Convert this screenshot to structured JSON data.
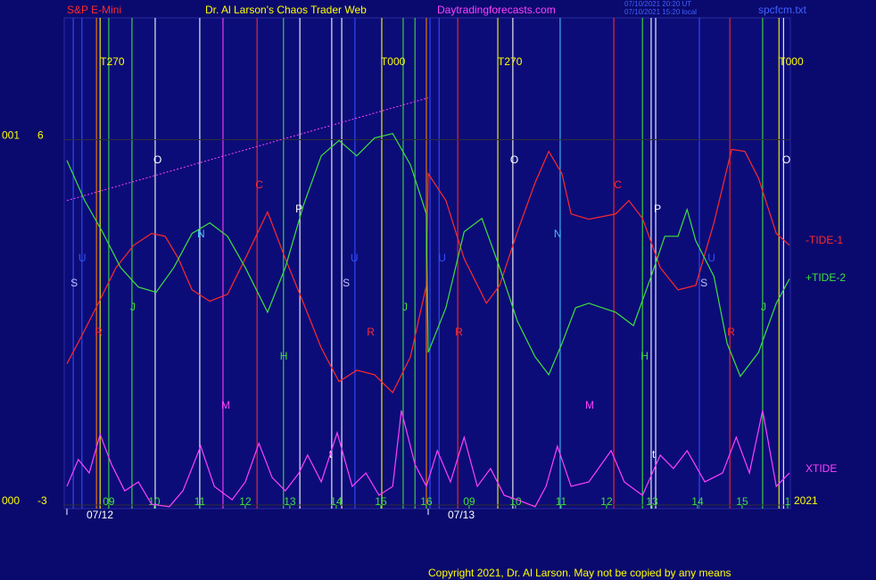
{
  "chart_data": {
    "type": "line",
    "title": "Dr. Al Larson's Chaos Trader Web",
    "instrument": "S&P E-Mini",
    "website": "Daytradingforecasts.com",
    "timestamps": [
      "07/10/2021 20:20 UT",
      "07/10/2021 15:20 local"
    ],
    "file": "spcfcm.txt",
    "year": "2021",
    "copyright": "Copyright 2021, Dr. Al Larson. May not be copied by any means",
    "xlim": [
      0,
      15.88
    ],
    "ylim": [
      -3,
      9
    ],
    "yticks": [
      6,
      -3
    ],
    "ytick_codes": [
      "001",
      "000"
    ],
    "xticks": [
      {
        "value": 0.92,
        "label": "09"
      },
      {
        "value": 1.92,
        "label": "10"
      },
      {
        "value": 2.92,
        "label": "11"
      },
      {
        "value": 3.92,
        "label": "12"
      },
      {
        "value": 4.9,
        "label": "13"
      },
      {
        "value": 5.92,
        "label": "14"
      },
      {
        "value": 6.9,
        "label": "15"
      },
      {
        "value": 7.9,
        "label": "16"
      },
      {
        "value": 8.84,
        "label": "09"
      },
      {
        "value": 9.86,
        "label": "10"
      },
      {
        "value": 10.86,
        "label": "11"
      },
      {
        "value": 11.86,
        "label": "12"
      },
      {
        "value": 12.86,
        "label": "13"
      },
      {
        "value": 13.86,
        "label": "14"
      },
      {
        "value": 14.84,
        "label": "15"
      },
      {
        "value": 15.84,
        "label": "1"
      }
    ],
    "date_ticks": [
      {
        "value": 0,
        "label": "07/12"
      },
      {
        "value": 7.94,
        "label": "07/13"
      }
    ],
    "series": [
      {
        "name": "-TIDE-1",
        "color": "#ff2a2a",
        "x": [
          0,
          0.29,
          0.69,
          1.08,
          1.47,
          1.86,
          2.16,
          2.45,
          2.75,
          3.14,
          3.53,
          3.92,
          4.41,
          4.8,
          5.2,
          5.59,
          5.98,
          6.37,
          6.76,
          7.16,
          7.55,
          7.9,
          7.94,
          8.33,
          8.73,
          9.22,
          9.51,
          9.9,
          10.29,
          10.59,
          10.88,
          11.08,
          11.47,
          12.06,
          12.35,
          12.65,
          13.04,
          13.43,
          13.82,
          14.22,
          14.61,
          14.9,
          15.2,
          15.59,
          15.88
        ],
        "values": [
          0.48,
          1.09,
          1.97,
          2.85,
          3.4,
          3.69,
          3.62,
          3.07,
          2.3,
          2.02,
          2.19,
          3.07,
          4.22,
          3.07,
          1.97,
          0.87,
          0.04,
          0.32,
          0.21,
          -0.23,
          0.65,
          2.41,
          5.16,
          4.5,
          3.07,
          1.97,
          2.41,
          3.73,
          4.94,
          5.71,
          5.16,
          4.17,
          4.04,
          4.17,
          4.5,
          4.06,
          2.85,
          2.3,
          2.41,
          3.95,
          5.76,
          5.71,
          5.05,
          3.69,
          3.4
        ]
      },
      {
        "name": "+TIDE-2",
        "color": "#3ee03e",
        "x": [
          0,
          0.39,
          0.78,
          1.18,
          1.57,
          1.96,
          2.35,
          2.75,
          3.14,
          3.53,
          3.92,
          4.41,
          4.8,
          5.2,
          5.59,
          5.98,
          6.37,
          6.76,
          7.16,
          7.55,
          7.9,
          7.94,
          8.33,
          8.73,
          9.12,
          9.51,
          9.9,
          10.29,
          10.59,
          10.88,
          11.18,
          11.47,
          12.06,
          12.45,
          12.84,
          13.14,
          13.43,
          13.63,
          13.82,
          14.22,
          14.51,
          14.8,
          15.2,
          15.59,
          15.88
        ],
        "values": [
          5.49,
          4.5,
          3.73,
          2.85,
          2.37,
          2.24,
          2.85,
          3.69,
          3.95,
          3.62,
          2.85,
          1.75,
          2.85,
          4.39,
          5.6,
          5.98,
          5.6,
          6.04,
          6.15,
          5.38,
          4.17,
          0.76,
          1.86,
          3.73,
          4.06,
          2.85,
          1.53,
          0.65,
          0.21,
          0.98,
          1.86,
          1.97,
          1.75,
          1.42,
          2.63,
          3.62,
          3.62,
          4.28,
          3.51,
          2.63,
          0.98,
          0.17,
          0.76,
          1.97,
          2.57
        ]
      },
      {
        "name": "XTIDE",
        "color": "#ff40ff",
        "x": [
          0,
          0.25,
          0.49,
          0.73,
          0.98,
          1.27,
          1.57,
          1.86,
          2.25,
          2.55,
          2.94,
          3.24,
          3.63,
          3.92,
          4.22,
          4.51,
          4.8,
          5.1,
          5.29,
          5.59,
          5.94,
          6.27,
          6.57,
          6.86,
          7.16,
          7.35,
          7.65,
          7.9,
          8.14,
          8.43,
          8.73,
          9.02,
          9.31,
          9.61,
          9.9,
          10.29,
          10.53,
          10.78,
          11.08,
          11.47,
          11.96,
          12.25,
          12.65,
          13.04,
          13.33,
          13.63,
          14.02,
          14.41,
          14.71,
          15.0,
          15.29,
          15.59,
          15.88
        ],
        "values": [
          -2.54,
          -1.88,
          -2.21,
          -1.26,
          -2.0,
          -2.65,
          -2.43,
          -2.98,
          -3.04,
          -2.65,
          -1.55,
          -2.54,
          -2.87,
          -2.43,
          -1.48,
          -2.32,
          -2.65,
          -2.21,
          -1.77,
          -2.43,
          -1.22,
          -2.54,
          -2.21,
          -2.76,
          -2.54,
          -0.67,
          -2.0,
          -2.54,
          -1.66,
          -2.43,
          -1.33,
          -2.54,
          -2.1,
          -2.76,
          -2.87,
          -3.04,
          -2.54,
          -1.55,
          -2.54,
          -2.43,
          -1.66,
          -2.43,
          -2.76,
          -1.77,
          -2.1,
          -1.66,
          -2.43,
          -2.21,
          -1.33,
          -2.21,
          -0.67,
          -2.54,
          -2.21
        ]
      }
    ],
    "trend": {
      "color": "#ff40ff",
      "x": [
        0,
        7.94
      ],
      "values": [
        4.5,
        7.03
      ]
    },
    "vlines": [
      {
        "x": 0.14,
        "color": "#3050ff"
      },
      {
        "x": 0.33,
        "color": "#3050ff"
      },
      {
        "x": 0.65,
        "color": "#ff8000"
      },
      {
        "x": 0.73,
        "color": "#ffff00"
      },
      {
        "x": 0.92,
        "color": "#3ee03e"
      },
      {
        "x": 1.43,
        "color": "#3ee03e"
      },
      {
        "x": 1.94,
        "color": "#ffffff"
      },
      {
        "x": 2.92,
        "color": "#ffffff"
      },
      {
        "x": 3.43,
        "color": "#ff40ff"
      },
      {
        "x": 4.18,
        "color": "#ff2a2a"
      },
      {
        "x": 4.76,
        "color": "#3ee03e"
      },
      {
        "x": 5.12,
        "color": "#ffffff"
      },
      {
        "x": 5.82,
        "color": "#ffffff"
      },
      {
        "x": 6.04,
        "color": "#ffffff"
      },
      {
        "x": 6.33,
        "color": "#3050ff"
      },
      {
        "x": 6.92,
        "color": "#ffff00"
      },
      {
        "x": 7.39,
        "color": "#3ee03e"
      },
      {
        "x": 7.65,
        "color": "#3ee03e"
      },
      {
        "x": 7.9,
        "color": "#ff8000"
      },
      {
        "x": 7.98,
        "color": "#3050ff"
      },
      {
        "x": 8.18,
        "color": "#3050ff"
      },
      {
        "x": 8.59,
        "color": "#ff2a2a"
      },
      {
        "x": 9.47,
        "color": "#ffff00"
      },
      {
        "x": 9.8,
        "color": "#ffffff"
      },
      {
        "x": 10.84,
        "color": "#40c0ff"
      },
      {
        "x": 12.02,
        "color": "#ff2a2a"
      },
      {
        "x": 12.65,
        "color": "#3ee03e"
      },
      {
        "x": 12.84,
        "color": "#ffffff"
      },
      {
        "x": 12.94,
        "color": "#ffffff"
      },
      {
        "x": 13.9,
        "color": "#3050ff"
      },
      {
        "x": 14.57,
        "color": "#ff2a2a"
      },
      {
        "x": 15.29,
        "color": "#3ee03e"
      },
      {
        "x": 15.65,
        "color": "#ffff00"
      },
      {
        "x": 15.75,
        "color": "#ffffff"
      }
    ],
    "markers": [
      {
        "label": "T270",
        "x": 0.73,
        "color": "#ffff00"
      },
      {
        "label": "T000",
        "x": 6.9,
        "color": "#ffff00"
      },
      {
        "label": "T270",
        "x": 9.47,
        "color": "#ffff00"
      },
      {
        "label": "T000",
        "x": 15.65,
        "color": "#ffff00"
      },
      {
        "label": "O",
        "x": 1.98,
        "color": "#ffffff"
      },
      {
        "label": "O",
        "x": 9.82,
        "color": "#ffffff"
      },
      {
        "label": "O",
        "x": 15.8,
        "color": "#ffffff"
      },
      {
        "label": "C",
        "x": 4.22,
        "color": "#ff2a2a"
      },
      {
        "label": "C",
        "x": 12.1,
        "color": "#ff2a2a"
      },
      {
        "label": "P",
        "x": 5.1,
        "color": "#ffffff"
      },
      {
        "label": "P",
        "x": 12.98,
        "color": "#ffffff"
      },
      {
        "label": "N",
        "x": 2.94,
        "color": "#40c0ff"
      },
      {
        "label": "N",
        "x": 10.78,
        "color": "#40c0ff"
      },
      {
        "label": "U",
        "x": 0.33,
        "color": "#3050ff"
      },
      {
        "label": "U",
        "x": 6.31,
        "color": "#3050ff"
      },
      {
        "label": "U",
        "x": 8.24,
        "color": "#3050ff"
      },
      {
        "label": "U",
        "x": 14.16,
        "color": "#3050ff"
      },
      {
        "label": "S",
        "x": 0.16,
        "color": "#c0c0ff"
      },
      {
        "label": "S",
        "x": 6.14,
        "color": "#c0c0ff"
      },
      {
        "label": "S",
        "x": 14.0,
        "color": "#c0c0ff"
      },
      {
        "label": "J",
        "x": 1.47,
        "color": "#3ee03e"
      },
      {
        "label": "J",
        "x": 7.45,
        "color": "#3ee03e"
      },
      {
        "label": "J",
        "x": 15.33,
        "color": "#3ee03e"
      },
      {
        "label": "R",
        "x": 0.69,
        "color": "#ff2a2a"
      },
      {
        "label": "R",
        "x": 6.67,
        "color": "#ff2a2a"
      },
      {
        "label": "R",
        "x": 8.61,
        "color": "#ff2a2a"
      },
      {
        "label": "R",
        "x": 14.59,
        "color": "#ff2a2a"
      },
      {
        "label": "H",
        "x": 4.76,
        "color": "#3ee03e"
      },
      {
        "label": "H",
        "x": 12.69,
        "color": "#3ee03e"
      },
      {
        "label": "M",
        "x": 3.47,
        "color": "#ff40ff"
      },
      {
        "label": "M",
        "x": 11.47,
        "color": "#ff40ff"
      },
      {
        "label": "t",
        "x": 5.84,
        "color": "#ffffff"
      },
      {
        "label": "t",
        "x": 12.94,
        "color": "#ffffff"
      }
    ]
  }
}
